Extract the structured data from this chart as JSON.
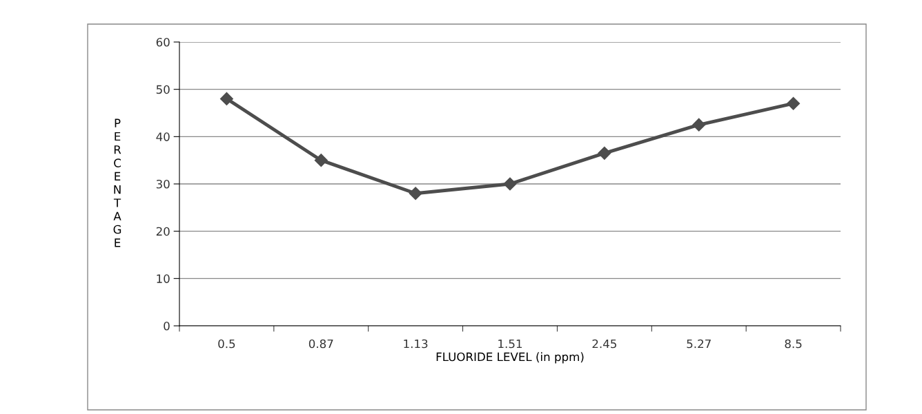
{
  "chart_data": {
    "type": "line",
    "xlabel": "FLUORIDE LEVEL (in ppm)",
    "ylabel": "PERCENTAGE",
    "categories": [
      "0.5",
      "0.87",
      "1.13",
      "1.51",
      "2.45",
      "5.27",
      "8.5"
    ],
    "series": [
      {
        "color": "#4d4d4d",
        "values": [
          48,
          35,
          28,
          30,
          36.5,
          42.5,
          47
        ]
      }
    ],
    "ylim": [
      0,
      60
    ],
    "yticks": [
      0,
      10,
      20,
      30,
      40,
      50,
      60
    ],
    "grid": "y",
    "marker": "diamond",
    "line_style": "solid"
  }
}
